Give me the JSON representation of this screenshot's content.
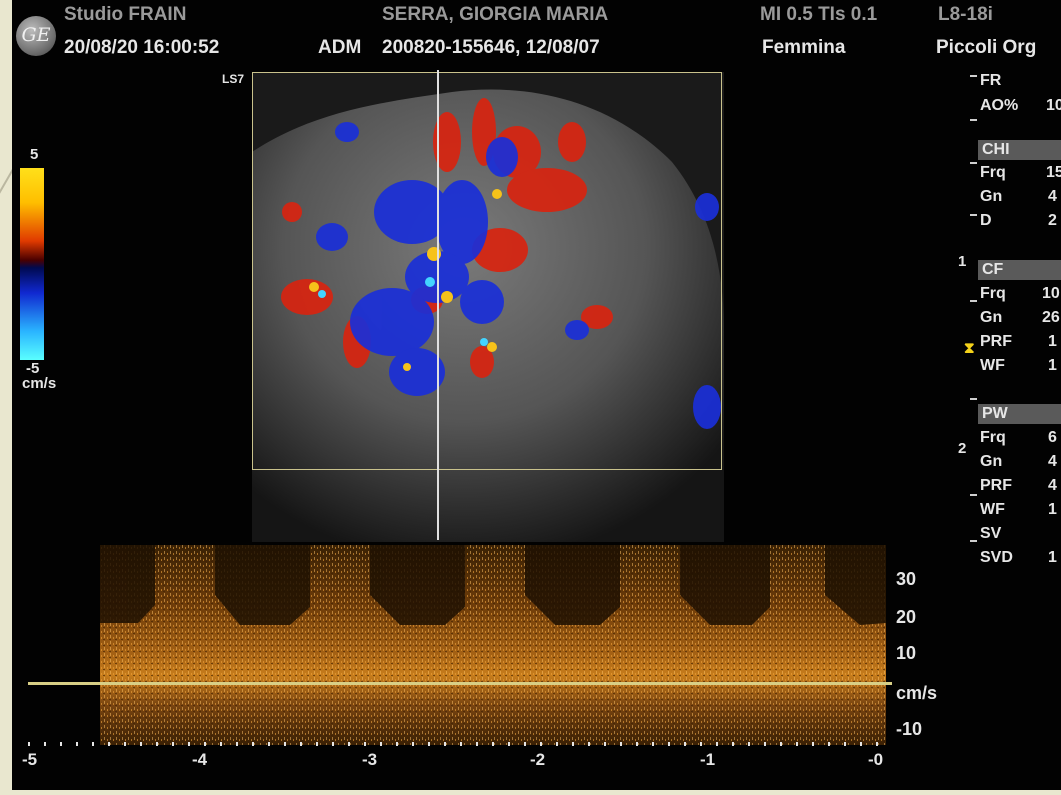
{
  "header": {
    "studio": "Studio FRAIN",
    "datetime": "20/08/20 16:00:52",
    "operator": "ADM",
    "patient_name": "SERRA, GIORGIA MARIA",
    "patient_id_dob": "200820-155646, 12/08/07",
    "sex": "Femmina",
    "indices": "MI 0.5   TIs 0.1",
    "probe": "L8-18i",
    "preset": "Piccoli Org"
  },
  "image": {
    "probe_label": "LS7"
  },
  "color_bar": {
    "max": "5",
    "min": "-5",
    "unit": "cm/s"
  },
  "params": {
    "fr": {
      "label": "FR"
    },
    "ao": {
      "label": "AO%",
      "value": "10"
    },
    "chi": {
      "title": "CHI",
      "frq": "Frq",
      "frq_v": "15",
      "gn": "Gn",
      "gn_v": "4",
      "d": "D",
      "d_v": "2"
    },
    "cf": {
      "title": "CF",
      "frq": "Frq",
      "frq_v": "10",
      "gn": "Gn",
      "gn_v": "26",
      "prf": "PRF",
      "prf_v": "1",
      "wf": "WF",
      "wf_v": "1"
    },
    "pw": {
      "title": "PW",
      "frq": "Frq",
      "frq_v": "6",
      "gn": "Gn",
      "gn_v": "4",
      "prf": "PRF",
      "prf_v": "4",
      "wf": "WF",
      "wf_v": "1",
      "sv": "SV",
      "svd": "SVD",
      "svd_v": "1"
    }
  },
  "depth_markers": [
    "1",
    "2"
  ],
  "spectrum": {
    "velocity_ticks": [
      "30",
      "20",
      "10",
      "cm/s",
      "-10"
    ],
    "time_ticks": [
      "-5",
      "-4",
      "-3",
      "-2",
      "-1",
      "-0"
    ]
  }
}
